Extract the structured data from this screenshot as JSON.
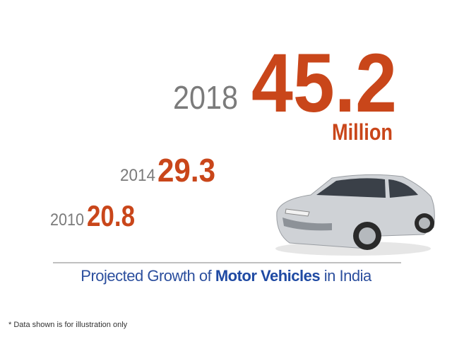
{
  "items": [
    {
      "year": 2018,
      "value": 45.2
    },
    {
      "year": 2014,
      "value": 29.3
    },
    {
      "year": 2010,
      "value": 20.8
    }
  ],
  "unit": "Million",
  "caption": {
    "before": "Projected Growth of",
    "highlight": "Motor Vehicles",
    "after": "in India"
  },
  "footnote": "* Data shown is for illustration only"
}
